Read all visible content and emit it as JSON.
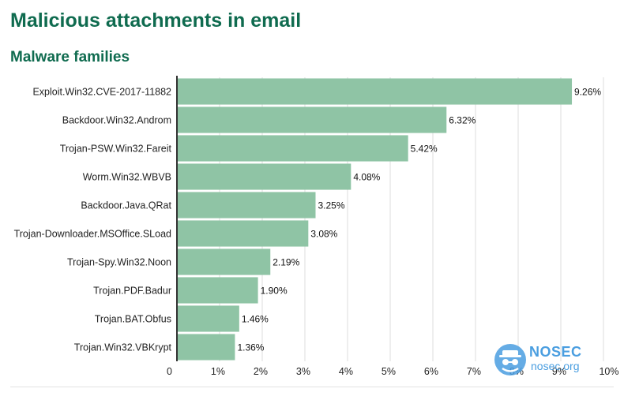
{
  "header": {
    "title": "Malicious attachments in email",
    "subtitle": "Malware families"
  },
  "watermark": {
    "brand": "NOSEC",
    "url": "nosec.org"
  },
  "colors": {
    "title": "#0f6b4f",
    "bar": "#8fc4a5",
    "grid": "#dddddd",
    "axis": "#333333",
    "watermark": "#4a9ee0"
  },
  "chart_data": {
    "type": "bar",
    "orientation": "horizontal",
    "categories": [
      "Exploit.Win32.CVE-2017-11882",
      "Backdoor.Win32.Androm",
      "Trojan-PSW.Win32.Fareit",
      "Worm.Win32.WBVB",
      "Backdoor.Java.QRat",
      "Trojan-Downloader.MSOffice.SLoad",
      "Trojan-Spy.Win32.Noon",
      "Trojan.PDF.Badur",
      "Trojan.BAT.Obfus",
      "Trojan.Win32.VBKrypt"
    ],
    "values": [
      9.26,
      6.32,
      5.42,
      4.08,
      3.25,
      3.08,
      2.19,
      1.9,
      1.46,
      1.36
    ],
    "value_labels": [
      "9.26%",
      "6.32%",
      "5.42%",
      "4.08%",
      "3.25%",
      "3.08%",
      "2.19%",
      "1.90%",
      "1.46%",
      "1.36%"
    ],
    "x_ticks": [
      "0",
      "1%",
      "2%",
      "3%",
      "4%",
      "5%",
      "6%",
      "7%",
      "8%",
      "9%",
      "10%"
    ],
    "xlim": [
      0,
      10
    ],
    "grid": "vertical",
    "legend": "none",
    "title": "Malicious attachments in email",
    "subtitle": "Malware families",
    "xlabel": "",
    "ylabel": ""
  }
}
